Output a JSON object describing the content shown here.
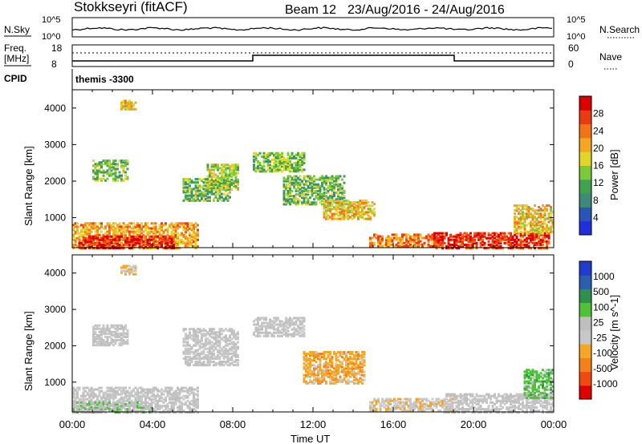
{
  "header": {
    "station": "Stokkseyri (fitACF)",
    "beam_label": "Beam 12",
    "date_range": "23/Aug/2016 - 24/Aug/2016"
  },
  "summary": {
    "nsky_label": "N.Sky",
    "nsearch_label": "N.Search",
    "freq_label_1": "Freq.",
    "freq_label_2": "[MHz]",
    "nave_label": "Nave",
    "cpid_label": "CPID",
    "cpid_value": "themis -3300",
    "noise_ticks_left": [
      "10^5",
      "10^0"
    ],
    "noise_ticks_right": [
      "10^5",
      "10^0"
    ],
    "freq_ticks": [
      "18",
      "8"
    ],
    "nave_ticks": [
      "60",
      "0"
    ]
  },
  "chart_data": [
    {
      "type": "heatmap",
      "title": "",
      "ylabel": "Slant Range [km]",
      "xlabel": "",
      "xlim": [
        "00:00",
        "24:00"
      ],
      "ylim": [
        180,
        4500
      ],
      "yticks": [
        "4000",
        "3000",
        "2000",
        "1000"
      ],
      "colorbar": {
        "label": "Power [dB]",
        "ticks": [
          "28",
          "24",
          "20",
          "16",
          "12",
          "8",
          "4"
        ],
        "range": [
          0,
          30
        ],
        "colors": [
          "#1f2fe0",
          "#2a55b8",
          "#3d8a7a",
          "#3fa34e",
          "#7ec93a",
          "#e2d52a",
          "#f5a623",
          "#f27415",
          "#ea3a10",
          "#dd0000"
        ]
      },
      "echo_regions": [
        {
          "t0": 0.0,
          "t1": 6.2,
          "r0": 200,
          "r1": 900,
          "power": 20
        },
        {
          "t0": 0.3,
          "t1": 5.0,
          "r0": 200,
          "r1": 550,
          "power": 26
        },
        {
          "t0": 1.0,
          "t1": 2.8,
          "r0": 2050,
          "r1": 2600,
          "power": 12
        },
        {
          "t0": 2.4,
          "t1": 3.2,
          "r0": 4000,
          "r1": 4250,
          "power": 18
        },
        {
          "t0": 5.5,
          "t1": 7.8,
          "r0": 1500,
          "r1": 2100,
          "power": 12
        },
        {
          "t0": 6.7,
          "t1": 8.2,
          "r0": 1800,
          "r1": 2500,
          "power": 14
        },
        {
          "t0": 9.0,
          "t1": 11.5,
          "r0": 2300,
          "r1": 2800,
          "power": 13
        },
        {
          "t0": 10.5,
          "t1": 13.5,
          "r0": 1400,
          "r1": 2200,
          "power": 12
        },
        {
          "t0": 12.5,
          "t1": 15.0,
          "r0": 1000,
          "r1": 1500,
          "power": 18
        },
        {
          "t0": 14.8,
          "t1": 18.5,
          "r0": 250,
          "r1": 600,
          "power": 22
        },
        {
          "t0": 18.0,
          "t1": 23.8,
          "r0": 200,
          "r1": 650,
          "power": 27
        },
        {
          "t0": 22.0,
          "t1": 24.0,
          "r0": 600,
          "r1": 1400,
          "power": 18
        }
      ]
    },
    {
      "type": "heatmap",
      "title": "",
      "ylabel": "Slant Range [km]",
      "xlabel": "Time UT",
      "xlim": [
        "00:00",
        "24:00"
      ],
      "xticks": [
        "00:00",
        "04:00",
        "08:00",
        "12:00",
        "16:00",
        "20:00",
        "00:00"
      ],
      "ylim": [
        180,
        4500
      ],
      "yticks": [
        "4000",
        "3000",
        "2000",
        "1000"
      ],
      "colorbar": {
        "label": "Velocity [m s^-1]",
        "ticks": [
          "1000",
          "500",
          "100",
          "25",
          "-25",
          "-100",
          "-500",
          "-1000"
        ],
        "range": [
          -1000,
          1000
        ],
        "colors": [
          "#e00000",
          "#f04a10",
          "#f5801a",
          "#f5a623",
          "#c8c8c8",
          "#bfbfbf",
          "#4fc23a",
          "#2f8f4f",
          "#2a5fb0",
          "#1f3bd0"
        ]
      },
      "echo_regions": [
        {
          "t0": 0.0,
          "t1": 6.2,
          "r0": 200,
          "r1": 900,
          "velocity": 0
        },
        {
          "t0": 0.0,
          "t1": 4.0,
          "r0": 200,
          "r1": 500,
          "velocity": 150
        },
        {
          "t0": 1.0,
          "t1": 2.8,
          "r0": 2050,
          "r1": 2600,
          "velocity": 0
        },
        {
          "t0": 2.4,
          "t1": 3.2,
          "r0": 4000,
          "r1": 4250,
          "velocity": -200
        },
        {
          "t0": 5.5,
          "t1": 8.2,
          "r0": 1500,
          "r1": 2500,
          "velocity": 0
        },
        {
          "t0": 9.0,
          "t1": 11.5,
          "r0": 2300,
          "r1": 2800,
          "velocity": 0
        },
        {
          "t0": 11.5,
          "t1": 14.5,
          "r0": 1000,
          "r1": 1900,
          "velocity": -300
        },
        {
          "t0": 14.8,
          "t1": 19.0,
          "r0": 250,
          "r1": 600,
          "velocity": -150
        },
        {
          "t0": 18.5,
          "t1": 24.0,
          "r0": 200,
          "r1": 700,
          "velocity": 0
        },
        {
          "t0": 22.5,
          "t1": 24.0,
          "r0": 600,
          "r1": 1400,
          "velocity": 300
        }
      ]
    }
  ]
}
